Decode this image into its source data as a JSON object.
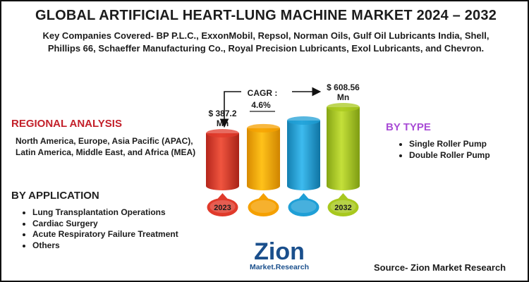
{
  "header": {
    "title": "GLOBAL ARTIFICIAL HEART-LUNG MACHINE MARKET 2024 – 2032",
    "subtitle": "Key Companies Covered- BP P.L.C., ExxonMobil, Repsol, Norman Oils, Gulf Oil Lubricants India, Shell, Phillips 66, Schaeffer Manufacturing Co., Royal Precision Lubricants, Exol Lubricants, and Chevron."
  },
  "regional": {
    "heading": "REGIONAL ANALYSIS",
    "text": "North America, Europe, Asia Pacific (APAC), Latin America, Middle East, and Africa (MEA)"
  },
  "application": {
    "heading": "BY APPLICATION",
    "items": [
      "Lung Transplantation Operations",
      "Cardiac Surgery",
      "Acute Respiratory Failure Treatment",
      "Others"
    ]
  },
  "type_section": {
    "heading": "BY TYPE",
    "items": [
      "Single Roller Pump",
      "Double Roller Pump"
    ]
  },
  "cagr": {
    "label": "CAGR :",
    "value": "4.6%"
  },
  "logo": {
    "brand": "Zion",
    "sub": "Market.Research"
  },
  "source": "Source- Zion Market Research",
  "colors": {
    "red": "#e03a2b",
    "orange": "#f5a000",
    "blue": "#1f9fd6",
    "green": "#a8c81e",
    "heading_red": "#c3202a",
    "heading_purple": "#a94cd6"
  },
  "chart_data": {
    "type": "bar",
    "categories": [
      "2023",
      "",
      "",
      "2032"
    ],
    "values": [
      387.2,
      430,
      495,
      608.56
    ],
    "value_labels": [
      "$ 387.2 Mn",
      "",
      "",
      "$ 608.56 Mn"
    ],
    "unit": "Mn",
    "ylim": [
      0,
      650
    ],
    "grid": false
  }
}
